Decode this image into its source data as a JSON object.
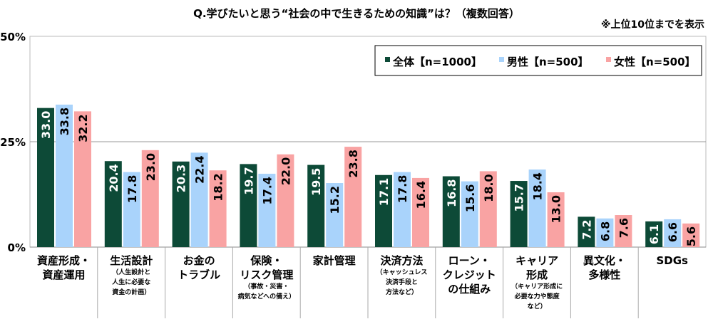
{
  "chart_data": {
    "type": "bar",
    "title": "Q.学びたいと思う“社会の中で生きるための知識”は？（複数回答）",
    "note": "※上位10位までを表示",
    "ylim": [
      0,
      50
    ],
    "yticks": [
      "0%",
      "25%",
      "50%"
    ],
    "grid": true,
    "legend_placement": "top-right",
    "categories": [
      {
        "main": "資産形成・\n資産運用",
        "sub": ""
      },
      {
        "main": "生活設計",
        "sub": "（人生設計と\n人生に必要な\n資金の計画）"
      },
      {
        "main": "お金の\nトラブル",
        "sub": ""
      },
      {
        "main": "保険・\nリスク管理",
        "sub": "（事故・災害・\n病気などへの備え）"
      },
      {
        "main": "家計管理",
        "sub": ""
      },
      {
        "main": "決済方法",
        "sub": "（キャッシュレス\n決済手段と\n方法など）"
      },
      {
        "main": "ローン・\nクレジット\nの仕組み",
        "sub": ""
      },
      {
        "main": "キャリア\n形成",
        "sub": "（キャリア形成に\n必要な力や態度\nなど）"
      },
      {
        "main": "異文化・\n多様性",
        "sub": ""
      },
      {
        "main": "SDGs",
        "sub": ""
      }
    ],
    "series": [
      {
        "name": "全体【n=1000】",
        "color": "#0d4a37",
        "label_color": "#ffffff",
        "values": [
          33.0,
          20.4,
          20.3,
          19.7,
          19.5,
          17.1,
          16.8,
          15.7,
          7.2,
          6.1
        ]
      },
      {
        "name": "男性【n=500】",
        "color": "#a9d3fb",
        "label_color": "#000000",
        "values": [
          33.8,
          17.8,
          22.4,
          17.4,
          15.2,
          17.8,
          15.6,
          18.4,
          6.8,
          6.6
        ]
      },
      {
        "name": "女性【n=500】",
        "color": "#f9a3a3",
        "label_color": "#000000",
        "values": [
          32.2,
          23.0,
          18.2,
          22.0,
          23.8,
          16.4,
          18.0,
          13.0,
          7.6,
          5.6
        ]
      }
    ]
  }
}
